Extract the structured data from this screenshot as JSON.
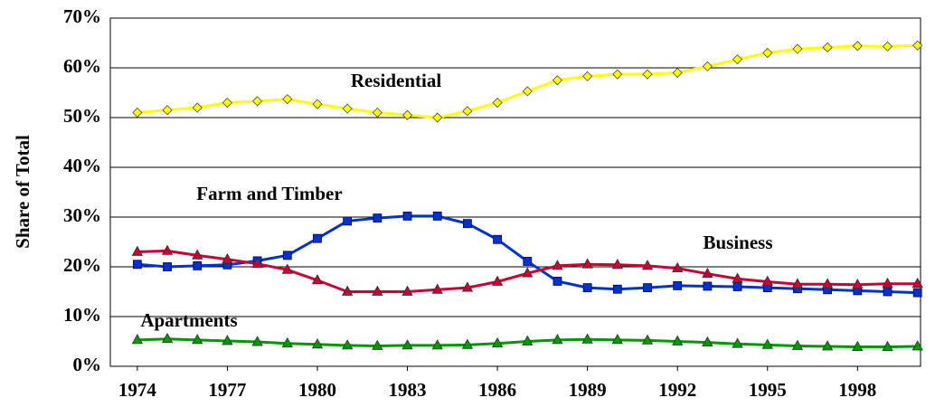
{
  "chart_data": {
    "type": "line",
    "y_label": "Share of Total",
    "x": [
      1974,
      1975,
      1976,
      1977,
      1978,
      1979,
      1980,
      1981,
      1982,
      1983,
      1984,
      1985,
      1986,
      1987,
      1988,
      1989,
      1990,
      1991,
      1992,
      1993,
      1994,
      1995,
      1996,
      1997,
      1998,
      1999,
      2000
    ],
    "xlim": [
      1973.1,
      2000.1
    ],
    "xticks": [
      1974,
      1977,
      1980,
      1983,
      1986,
      1989,
      1992,
      1995,
      1998
    ],
    "ylim": [
      0,
      70
    ],
    "yticks": [
      {
        "value": 0,
        "label": "0%"
      },
      {
        "value": 10,
        "label": "10%"
      },
      {
        "value": 20,
        "label": "20%"
      },
      {
        "value": 30,
        "label": "30%"
      },
      {
        "value": 40,
        "label": "40%"
      },
      {
        "value": 50,
        "label": "50%"
      },
      {
        "value": 60,
        "label": "60%"
      },
      {
        "value": 70,
        "label": "70%"
      }
    ],
    "grid": true,
    "series": [
      {
        "name": "Residential",
        "color": "#ffff00",
        "marker": "diamond",
        "values": [
          51,
          51.5,
          52,
          53,
          53.3,
          53.7,
          52.7,
          51.8,
          51,
          50.5,
          50,
          51.3,
          53,
          55.3,
          57.5,
          58.3,
          58.7,
          58.7,
          59,
          60.3,
          61.7,
          63,
          63.8,
          64.1,
          64.4,
          64.3,
          64.5
        ]
      },
      {
        "name": "Farm and Timber",
        "color": "#0033cc",
        "marker": "square",
        "values": [
          20.5,
          20,
          20.2,
          20.4,
          21.2,
          22.3,
          25.7,
          29.2,
          29.8,
          30.2,
          30.2,
          28.7,
          25.5,
          21.1,
          17.1,
          15.8,
          15.5,
          15.8,
          16.2,
          16.1,
          16,
          15.8,
          15.6,
          15.4,
          15.2,
          15,
          14.8
        ]
      },
      {
        "name": "Business",
        "color": "#cc0033",
        "marker": "triangle",
        "values": [
          23,
          23.2,
          22.3,
          21.5,
          20.6,
          19.4,
          17.3,
          15,
          15,
          15,
          15.4,
          15.8,
          17,
          18.7,
          20.2,
          20.5,
          20.4,
          20.2,
          19.7,
          18.6,
          17.6,
          17,
          16.5,
          16.5,
          16.4,
          16.6,
          16.6
        ]
      },
      {
        "name": "Apartments",
        "color": "#009900",
        "marker": "triangle",
        "values": [
          5.3,
          5.5,
          5.3,
          5.1,
          4.9,
          4.6,
          4.4,
          4.2,
          4.1,
          4.2,
          4.2,
          4.3,
          4.6,
          5,
          5.3,
          5.4,
          5.3,
          5.2,
          5,
          4.8,
          4.5,
          4.3,
          4.1,
          4,
          3.9,
          3.9,
          4
        ]
      }
    ]
  }
}
